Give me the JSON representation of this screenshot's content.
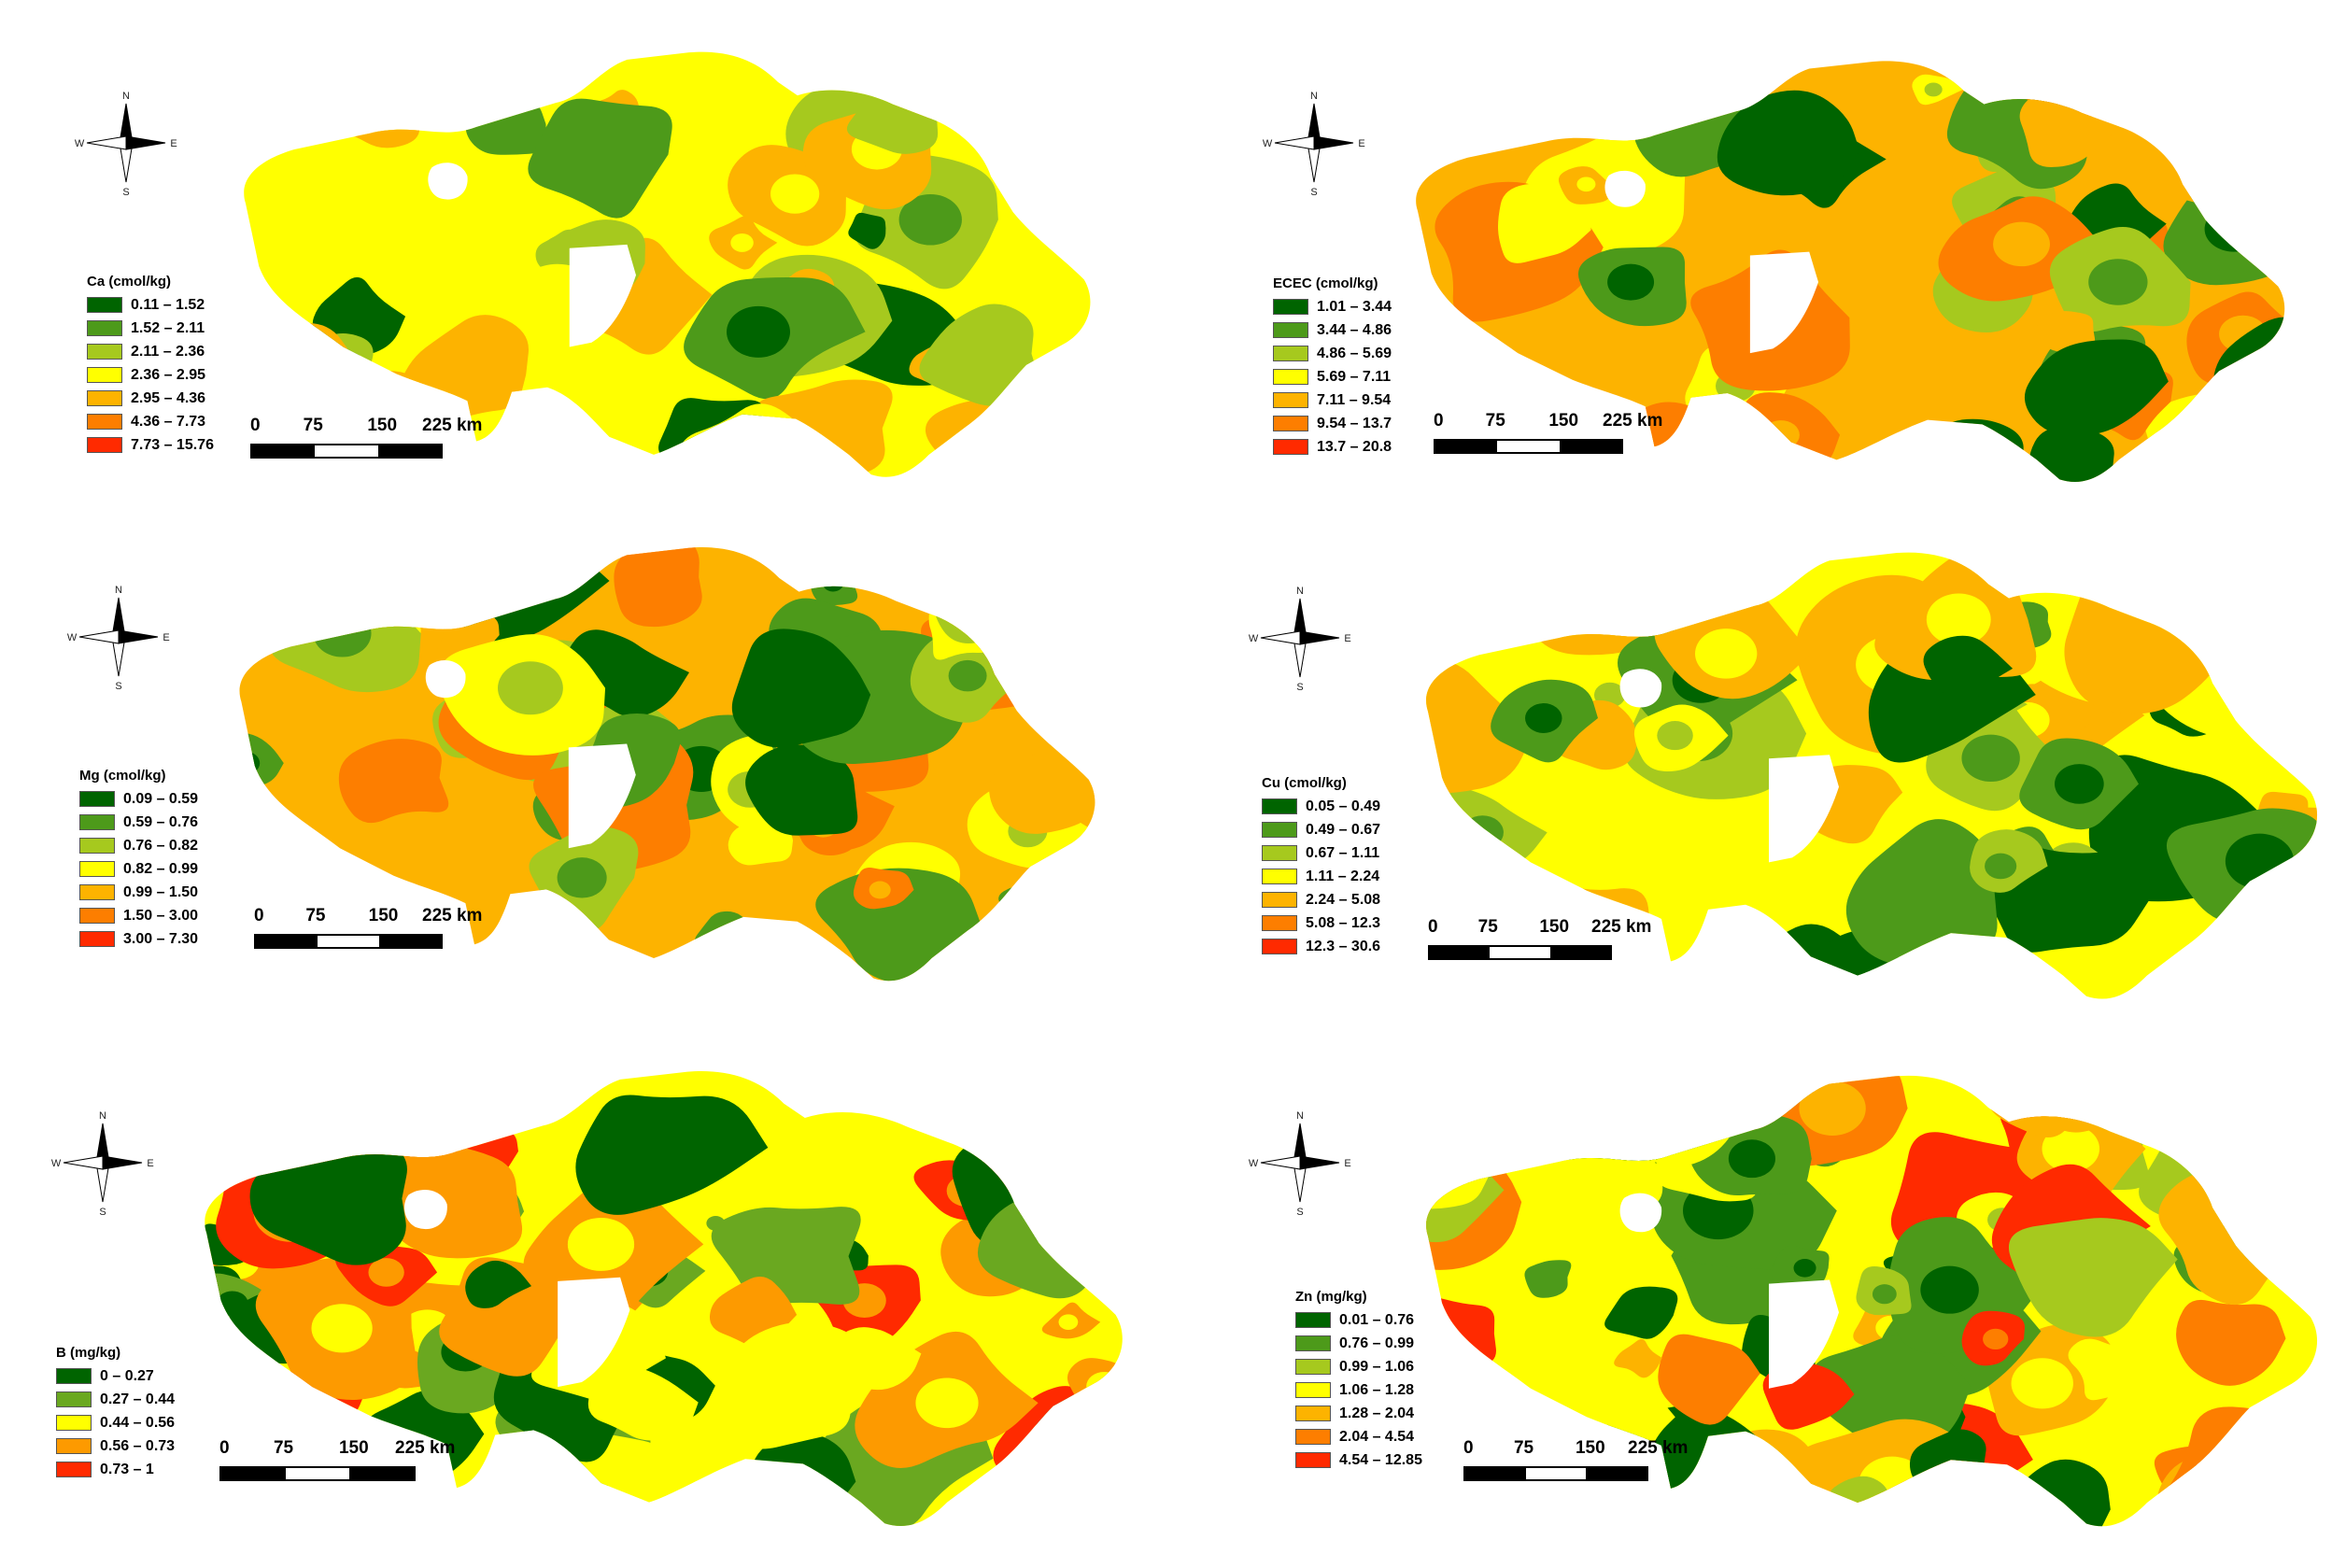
{
  "compass": {
    "n": "N",
    "s": "S",
    "e": "E",
    "w": "W"
  },
  "scale": {
    "ticks": [
      "0",
      "75",
      "150",
      "225 km"
    ]
  },
  "panels": [
    {
      "id": "ca",
      "title": "Ca (cmol/kg)",
      "classes": [
        {
          "label": "0.11 – 1.52",
          "color": "#006400"
        },
        {
          "label": "1.52 – 2.11",
          "color": "#4d9a1a"
        },
        {
          "label": "2.11 – 2.36",
          "color": "#a6c91e"
        },
        {
          "label": "2.36 – 2.95",
          "color": "#ffff00"
        },
        {
          "label": "2.95 – 4.36",
          "color": "#fdb300"
        },
        {
          "label": "4.36 – 7.73",
          "color": "#fd7e00"
        },
        {
          "label": "7.73 – 15.76",
          "color": "#ff2a00"
        }
      ]
    },
    {
      "id": "ecec",
      "title": "ECEC (cmol/kg)",
      "classes": [
        {
          "label": "1.01 – 3.44",
          "color": "#006400"
        },
        {
          "label": "3.44 – 4.86",
          "color": "#4d9a1a"
        },
        {
          "label": "4.86 – 5.69",
          "color": "#a6c91e"
        },
        {
          "label": "5.69 – 7.11",
          "color": "#ffff00"
        },
        {
          "label": "7.11 – 9.54",
          "color": "#fdb300"
        },
        {
          "label": "9.54 – 13.7",
          "color": "#fd7e00"
        },
        {
          "label": "13.7 – 20.8",
          "color": "#ff2a00"
        }
      ]
    },
    {
      "id": "mg",
      "title": "Mg (cmol/kg)",
      "classes": [
        {
          "label": "0.09 – 0.59",
          "color": "#006400"
        },
        {
          "label": "0.59 – 0.76",
          "color": "#4d9a1a"
        },
        {
          "label": "0.76 – 0.82",
          "color": "#a6c91e"
        },
        {
          "label": "0.82 – 0.99",
          "color": "#ffff00"
        },
        {
          "label": "0.99 – 1.50",
          "color": "#fdb300"
        },
        {
          "label": "1.50 – 3.00",
          "color": "#fd7e00"
        },
        {
          "label": "3.00 – 7.30",
          "color": "#ff2a00"
        }
      ]
    },
    {
      "id": "cu",
      "title": "Cu (cmol/kg)",
      "classes": [
        {
          "label": "0.05 – 0.49",
          "color": "#006400"
        },
        {
          "label": "0.49 – 0.67",
          "color": "#4d9a1a"
        },
        {
          "label": "0.67 – 1.11",
          "color": "#a6c91e"
        },
        {
          "label": "1.11 – 2.24",
          "color": "#ffff00"
        },
        {
          "label": "2.24 – 5.08",
          "color": "#fdb300"
        },
        {
          "label": "5.08 – 12.3",
          "color": "#fd7e00"
        },
        {
          "label": "12.3 – 30.6",
          "color": "#ff2a00"
        }
      ]
    },
    {
      "id": "b",
      "title": "B (mg/kg)",
      "classes": [
        {
          "label": "0 – 0.27",
          "color": "#006400"
        },
        {
          "label": "0.27 – 0.44",
          "color": "#6aa820"
        },
        {
          "label": "0.44 – 0.56",
          "color": "#ffff00"
        },
        {
          "label": "0.56 – 0.73",
          "color": "#fd9a00"
        },
        {
          "label": "0.73 – 1",
          "color": "#ff2a00"
        }
      ]
    },
    {
      "id": "zn",
      "title": "Zn (mg/kg)",
      "classes": [
        {
          "label": "0.01 – 0.76",
          "color": "#006400"
        },
        {
          "label": "0.76 – 0.99",
          "color": "#4d9a1a"
        },
        {
          "label": "0.99 – 1.06",
          "color": "#a6c91e"
        },
        {
          "label": "1.06 – 1.28",
          "color": "#ffff00"
        },
        {
          "label": "1.28 – 2.04",
          "color": "#fdb300"
        },
        {
          "label": "2.04 – 4.54",
          "color": "#fd7e00"
        },
        {
          "label": "4.54 – 12.85",
          "color": "#ff2a00"
        }
      ]
    }
  ]
}
